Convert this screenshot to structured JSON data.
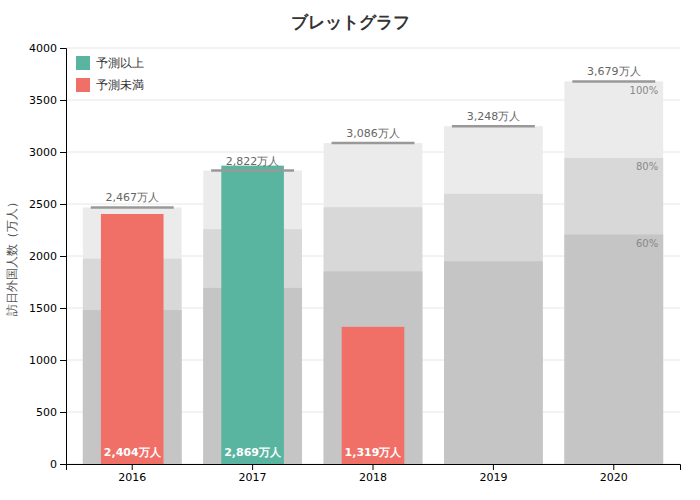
{
  "chart_data": {
    "type": "bar",
    "title": "ブレットグラフ",
    "ylabel": "訪日外国人数（万人）",
    "categories": [
      "2016",
      "2017",
      "2018",
      "2019",
      "2020"
    ],
    "series": [
      {
        "type": "band",
        "color": "#ebebeb",
        "values": [
          2467,
          2822,
          3086,
          3248,
          3679
        ]
      },
      {
        "type": "band",
        "color": "#d8d8d8",
        "values": [
          1974,
          2258,
          2469,
          2598,
          2943
        ]
      },
      {
        "type": "band",
        "color": "#c5c5c5",
        "values": [
          1480,
          1693,
          1852,
          1949,
          2207
        ]
      },
      {
        "type": "bar",
        "name": "予測以上",
        "color": "#5ab5a0",
        "values": [
          null,
          2869,
          null,
          null,
          null
        ],
        "value_labels": [
          null,
          "2,869万人",
          null,
          null,
          null
        ]
      },
      {
        "type": "bar",
        "name": "予測未満",
        "color": "#f07068",
        "values": [
          2404,
          null,
          1319,
          null,
          null
        ],
        "value_labels": [
          "2,404万人",
          null,
          "1,319万人",
          null,
          null
        ]
      },
      {
        "type": "target",
        "color": "#999999",
        "values": [
          2467,
          2822,
          3086,
          3248,
          3679
        ],
        "value_labels": [
          "2,467万人",
          "2,822万人",
          "3,086万人",
          "3,248万人",
          "3,679万人"
        ]
      }
    ],
    "annotations": [
      {
        "text": "100%",
        "x": "2020",
        "y": 3679
      },
      {
        "text": "80%",
        "x": "2020",
        "y": 2943
      },
      {
        "text": "60%",
        "x": "2020",
        "y": 2207
      }
    ],
    "ylim": [
      0,
      4000
    ],
    "yticks": [
      0,
      500,
      1000,
      1500,
      2000,
      2500,
      3000,
      3500,
      4000
    ],
    "grid": true,
    "data_labels": true,
    "legend": "upper left"
  }
}
